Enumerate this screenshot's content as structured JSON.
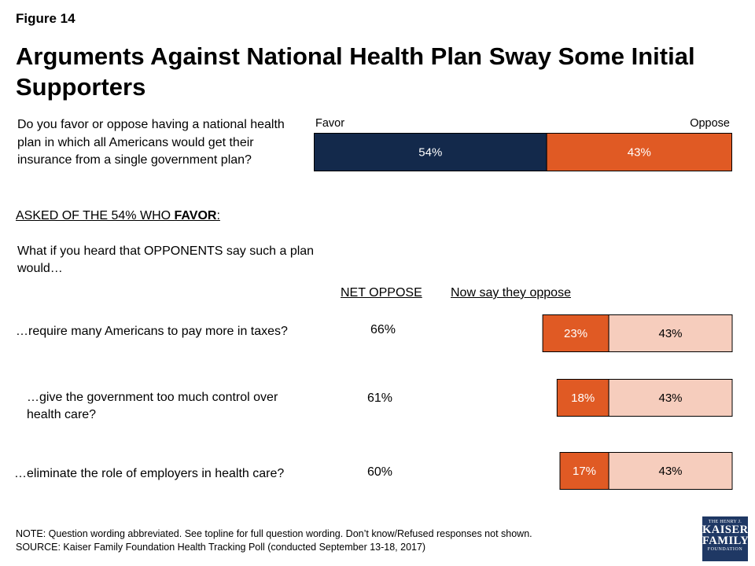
{
  "figure_label": "Figure 14",
  "title": "Arguments Against National Health Plan Sway Some Initial Supporters",
  "main_question": "Do you favor or oppose having a national health plan in which all Americans would get their insurance from a single government plan?",
  "asked_prefix": "ASKED OF THE 54% WHO ",
  "asked_bold": "FAVOR",
  "asked_suffix": ":",
  "followup_question": "What if you heard that OPPONENTS say such a plan would…",
  "column_headers": {
    "net": "NET OPPOSE",
    "now": "Now say they oppose"
  },
  "note": "NOTE: Question wording abbreviated. See topline for full question wording. Don’t know/Refused responses not shown.",
  "source": "SOURCE: Kaiser Family Foundation Health Tracking Poll (conducted September 13-18, 2017)",
  "logo": {
    "line1": "THE HENRY J.",
    "line2": "KAISER",
    "line3": "FAMILY",
    "line4": "FOUNDATION"
  },
  "colors": {
    "favor": "#13294b",
    "oppose": "#e05a24",
    "base": "#f6cdbd"
  },
  "chart_data": [
    {
      "type": "bar",
      "orientation": "horizontal-stacked",
      "series": [
        {
          "name": "Favor",
          "values": [
            54
          ],
          "labels": [
            "54%"
          ]
        },
        {
          "name": "Oppose",
          "values": [
            43
          ],
          "labels": [
            "43%"
          ]
        }
      ]
    },
    {
      "type": "bar",
      "orientation": "horizontal-stacked",
      "categories": [
        "…require many Americans to pay more in taxes?",
        "…give the government too much control over health care?",
        "…eliminate the role of employers in health care?"
      ],
      "net_oppose": [
        "66%",
        "61%",
        "60%"
      ],
      "series": [
        {
          "name": "Now say they oppose",
          "values": [
            23,
            18,
            17
          ],
          "labels": [
            "23%",
            "18%",
            "17%"
          ]
        },
        {
          "values": [
            43,
            43,
            43
          ],
          "labels": [
            "43%",
            "43%",
            "43%"
          ]
        }
      ]
    }
  ]
}
